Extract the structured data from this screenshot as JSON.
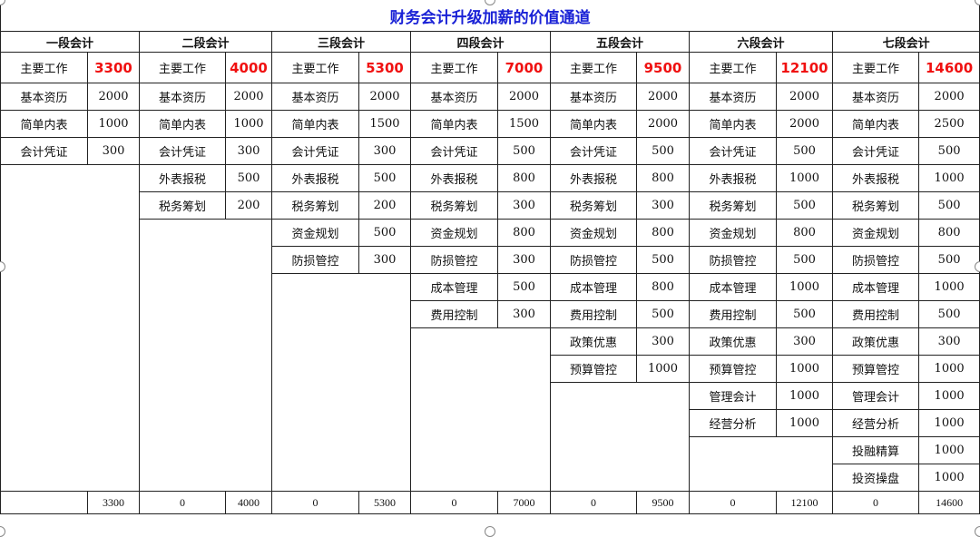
{
  "title": "财务会计升级加薪的价值通道",
  "stages": [
    {
      "name": "一段会计",
      "items": [
        [
          "主要工作",
          "3300"
        ],
        [
          "基本资历",
          "2000"
        ],
        [
          "简单内表",
          "1000"
        ],
        [
          "会计凭证",
          "300"
        ]
      ],
      "footer": [
        "",
        "3300"
      ]
    },
    {
      "name": "二段会计",
      "items": [
        [
          "主要工作",
          "4000"
        ],
        [
          "基本资历",
          "2000"
        ],
        [
          "简单内表",
          "1000"
        ],
        [
          "会计凭证",
          "300"
        ],
        [
          "外表报税",
          "500"
        ],
        [
          "税务筹划",
          "200"
        ]
      ],
      "footer": [
        "0",
        "4000"
      ]
    },
    {
      "name": "三段会计",
      "items": [
        [
          "主要工作",
          "5300"
        ],
        [
          "基本资历",
          "2000"
        ],
        [
          "简单内表",
          "1500"
        ],
        [
          "会计凭证",
          "300"
        ],
        [
          "外表报税",
          "500"
        ],
        [
          "税务筹划",
          "200"
        ],
        [
          "资金规划",
          "500"
        ],
        [
          "防损管控",
          "300"
        ]
      ],
      "footer": [
        "0",
        "5300"
      ]
    },
    {
      "name": "四段会计",
      "items": [
        [
          "主要工作",
          "7000"
        ],
        [
          "基本资历",
          "2000"
        ],
        [
          "简单内表",
          "1500"
        ],
        [
          "会计凭证",
          "500"
        ],
        [
          "外表报税",
          "800"
        ],
        [
          "税务筹划",
          "300"
        ],
        [
          "资金规划",
          "800"
        ],
        [
          "防损管控",
          "300"
        ],
        [
          "成本管理",
          "500"
        ],
        [
          "费用控制",
          "300"
        ]
      ],
      "footer": [
        "0",
        "7000"
      ]
    },
    {
      "name": "五段会计",
      "items": [
        [
          "主要工作",
          "9500"
        ],
        [
          "基本资历",
          "2000"
        ],
        [
          "简单内表",
          "2000"
        ],
        [
          "会计凭证",
          "500"
        ],
        [
          "外表报税",
          "800"
        ],
        [
          "税务筹划",
          "300"
        ],
        [
          "资金规划",
          "800"
        ],
        [
          "防损管控",
          "500"
        ],
        [
          "成本管理",
          "800"
        ],
        [
          "费用控制",
          "500"
        ],
        [
          "政策优惠",
          "300"
        ],
        [
          "预算管控",
          "1000"
        ]
      ],
      "footer": [
        "0",
        "9500"
      ]
    },
    {
      "name": "六段会计",
      "items": [
        [
          "主要工作",
          "12100"
        ],
        [
          "基本资历",
          "2000"
        ],
        [
          "简单内表",
          "2000"
        ],
        [
          "会计凭证",
          "500"
        ],
        [
          "外表报税",
          "1000"
        ],
        [
          "税务筹划",
          "500"
        ],
        [
          "资金规划",
          "800"
        ],
        [
          "防损管控",
          "500"
        ],
        [
          "成本管理",
          "1000"
        ],
        [
          "费用控制",
          "500"
        ],
        [
          "政策优惠",
          "300"
        ],
        [
          "预算管控",
          "1000"
        ],
        [
          "管理会计",
          "1000"
        ],
        [
          "经营分析",
          "1000"
        ]
      ],
      "footer": [
        "0",
        "12100"
      ]
    },
    {
      "name": "七段会计",
      "items": [
        [
          "主要工作",
          "14600"
        ],
        [
          "基本资历",
          "2000"
        ],
        [
          "简单内表",
          "2500"
        ],
        [
          "会计凭证",
          "500"
        ],
        [
          "外表报税",
          "1000"
        ],
        [
          "税务筹划",
          "500"
        ],
        [
          "资金规划",
          "800"
        ],
        [
          "防损管控",
          "500"
        ],
        [
          "成本管理",
          "1000"
        ],
        [
          "费用控制",
          "500"
        ],
        [
          "政策优惠",
          "300"
        ],
        [
          "预算管控",
          "1000"
        ],
        [
          "管理会计",
          "1000"
        ],
        [
          "经营分析",
          "1000"
        ],
        [
          "投融精算",
          "1000"
        ],
        [
          "投资操盘",
          "1000"
        ]
      ],
      "footer": [
        "0",
        "14600"
      ]
    }
  ],
  "colors": {
    "title": "#1a22d6",
    "highlight": "#f01010"
  }
}
